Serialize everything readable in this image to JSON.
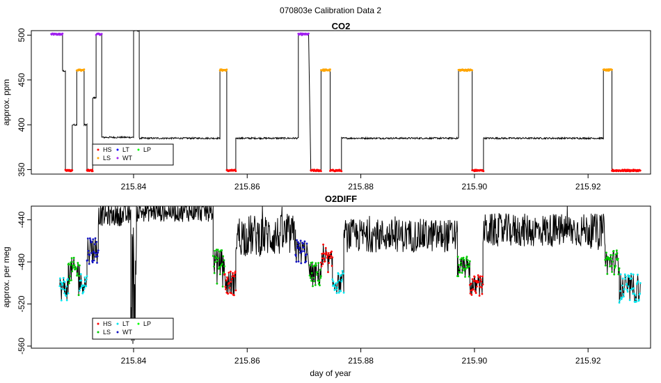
{
  "figure_title": "070803e   Calibration Data 2",
  "xlabel": "day of year",
  "colors": {
    "HS": "#ff0000",
    "LS": "#ffa500",
    "LT": "#0000ff",
    "WT": "#a020f0",
    "LP": "#00ff00",
    "line": "#000000",
    "o2_LS": "#00cc00",
    "o2_LT": "#00e5ee",
    "o2_WT": "#1010c0"
  },
  "chart_data": [
    {
      "type": "line",
      "title": "CO2",
      "ylabel": "approx. ppm",
      "xlim": [
        215.822,
        215.931
      ],
      "ylim": [
        345,
        505
      ],
      "xticks": [
        "215.84",
        "215.86",
        "215.88",
        "215.90",
        "215.92"
      ],
      "yticks": [
        "350",
        "400",
        "450",
        "500"
      ],
      "legend": {
        "position": "bottom-left",
        "entries": [
          "HS",
          "LS",
          "LT",
          "WT",
          "LP"
        ]
      },
      "segments": [
        {
          "x": [
            215.8255,
            215.8275
          ],
          "y": 501,
          "flag": "WT"
        },
        {
          "x": [
            215.8275,
            215.828
          ],
          "y": 460,
          "flag": ""
        },
        {
          "x": [
            215.828,
            215.8292
          ],
          "y": 349,
          "flag": "HS"
        },
        {
          "x": [
            215.8292,
            215.83
          ],
          "y": 400,
          "flag": ""
        },
        {
          "x": [
            215.83,
            215.8313
          ],
          "y": 461,
          "flag": "LS"
        },
        {
          "x": [
            215.8313,
            215.8318
          ],
          "y": 400,
          "flag": ""
        },
        {
          "x": [
            215.8318,
            215.8328
          ],
          "y": 349,
          "flag": "HS"
        },
        {
          "x": [
            215.8328,
            215.8334
          ],
          "y": 430,
          "flag": ""
        },
        {
          "x": [
            215.8334,
            215.8344
          ],
          "y": 501,
          "flag": "WT"
        },
        {
          "x": [
            215.8344,
            215.84
          ],
          "y": 386,
          "flag": ""
        },
        {
          "x": [
            215.84,
            215.841
          ],
          "y": 505,
          "flag": ""
        },
        {
          "x": [
            215.841,
            215.8552
          ],
          "y": 385,
          "flag": ""
        },
        {
          "x": [
            215.8552,
            215.8564
          ],
          "y": 461,
          "flag": "LS"
        },
        {
          "x": [
            215.8564,
            215.858
          ],
          "y": 349,
          "flag": "HS"
        },
        {
          "x": [
            215.858,
            215.869
          ],
          "y": 385,
          "flag": ""
        },
        {
          "x": [
            215.869,
            215.8708
          ],
          "y": 501,
          "flag": "WT"
        },
        {
          "x": [
            215.8712,
            215.873
          ],
          "y": 349,
          "flag": "HS"
        },
        {
          "x": [
            215.873,
            215.8746
          ],
          "y": 461,
          "flag": "LS"
        },
        {
          "x": [
            215.8746,
            215.8766
          ],
          "y": 349,
          "flag": "HS"
        },
        {
          "x": [
            215.8766,
            215.8972
          ],
          "y": 385,
          "flag": ""
        },
        {
          "x": [
            215.8972,
            215.8996
          ],
          "y": 461,
          "flag": "LS"
        },
        {
          "x": [
            215.8996,
            215.9016
          ],
          "y": 349,
          "flag": "HS"
        },
        {
          "x": [
            215.9016,
            215.9227
          ],
          "y": 385,
          "flag": ""
        },
        {
          "x": [
            215.9227,
            215.9242
          ],
          "y": 461,
          "flag": "LS"
        },
        {
          "x": [
            215.9242,
            215.9292
          ],
          "y": 349,
          "flag": "HS"
        }
      ]
    },
    {
      "type": "line",
      "title": "O2DIFF",
      "ylabel": "approx. per meg",
      "xlabel": "day of year",
      "xlim": [
        215.822,
        215.931
      ],
      "ylim": [
        -562,
        -427
      ],
      "xticks": [
        "215.84",
        "215.86",
        "215.88",
        "215.90",
        "215.92"
      ],
      "yticks": [
        "-560",
        "-520",
        "-480",
        "-440"
      ],
      "legend": {
        "position": "bottom-left",
        "entries": [
          "HS",
          "LS",
          "LT",
          "WT",
          "LP"
        ]
      },
      "segments": [
        {
          "x": [
            215.827,
            215.8285
          ],
          "y": -505,
          "noise": 12,
          "flag": "LT"
        },
        {
          "x": [
            215.8285,
            215.8305
          ],
          "y": -488,
          "noise": 12,
          "flag": "LS"
        },
        {
          "x": [
            215.8305,
            215.8318
          ],
          "y": -500,
          "noise": 10,
          "flag": "LT"
        },
        {
          "x": [
            215.8318,
            215.8338
          ],
          "y": -468,
          "noise": 14,
          "flag": "WT"
        },
        {
          "x": [
            215.8338,
            215.8395
          ],
          "y": -436,
          "noise": 10,
          "flag": ""
        },
        {
          "x": [
            215.8395,
            215.8405
          ],
          "y": -500,
          "noise": 60,
          "flag": ""
        },
        {
          "x": [
            215.8405,
            215.854
          ],
          "y": -432,
          "noise": 10,
          "flag": ""
        },
        {
          "x": [
            215.854,
            215.856
          ],
          "y": -480,
          "noise": 12,
          "flag": "LS"
        },
        {
          "x": [
            215.856,
            215.858
          ],
          "y": -500,
          "noise": 12,
          "flag": "HS"
        },
        {
          "x": [
            215.858,
            215.8685
          ],
          "y": -455,
          "noise": 20,
          "flag": ""
        },
        {
          "x": [
            215.8685,
            215.8705
          ],
          "y": -470,
          "noise": 12,
          "flag": "WT"
        },
        {
          "x": [
            215.871,
            215.873
          ],
          "y": -492,
          "noise": 12,
          "flag": "LS"
        },
        {
          "x": [
            215.873,
            215.875
          ],
          "y": -480,
          "noise": 10,
          "flag": "HS"
        },
        {
          "x": [
            215.875,
            215.877
          ],
          "y": -500,
          "noise": 10,
          "flag": "LT"
        },
        {
          "x": [
            215.877,
            215.897
          ],
          "y": -455,
          "noise": 16,
          "flag": ""
        },
        {
          "x": [
            215.897,
            215.8992
          ],
          "y": -485,
          "noise": 10,
          "flag": "LS"
        },
        {
          "x": [
            215.8992,
            215.9015
          ],
          "y": -503,
          "noise": 10,
          "flag": "HS"
        },
        {
          "x": [
            215.9015,
            215.923
          ],
          "y": -450,
          "noise": 16,
          "flag": ""
        },
        {
          "x": [
            215.923,
            215.9255
          ],
          "y": -480,
          "noise": 12,
          "flag": "LS"
        },
        {
          "x": [
            215.9255,
            215.9292
          ],
          "y": -505,
          "noise": 14,
          "flag": "LT"
        }
      ]
    }
  ]
}
